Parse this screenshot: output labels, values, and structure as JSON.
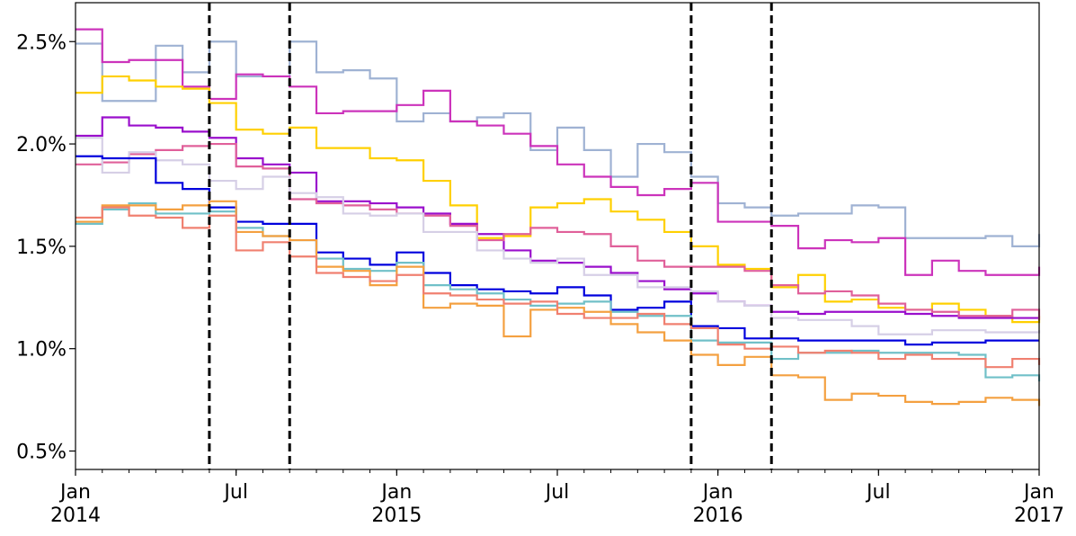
{
  "chart_data": {
    "type": "step",
    "x": [
      "2014-01",
      "2014-02",
      "2014-03",
      "2014-04",
      "2014-05",
      "2014-06",
      "2014-07",
      "2014-08",
      "2014-09",
      "2014-10",
      "2014-11",
      "2014-12",
      "2015-01",
      "2015-02",
      "2015-03",
      "2015-04",
      "2015-05",
      "2015-06",
      "2015-07",
      "2015-08",
      "2015-09",
      "2015-10",
      "2015-11",
      "2015-12",
      "2016-01",
      "2016-02",
      "2016-03",
      "2016-04",
      "2016-05",
      "2016-06",
      "2016-07",
      "2016-08",
      "2016-09",
      "2016-10",
      "2016-11",
      "2016-12",
      "2017-01"
    ],
    "series": [
      {
        "color": "#9fb2d3",
        "values": [
          2.49,
          2.21,
          2.21,
          2.48,
          2.35,
          2.5,
          2.33,
          2.33,
          2.5,
          2.35,
          2.36,
          2.32,
          2.11,
          2.15,
          2.11,
          2.13,
          2.15,
          1.97,
          2.08,
          1.97,
          1.84,
          2.0,
          1.96,
          1.84,
          1.71,
          1.69,
          1.65,
          1.66,
          1.66,
          1.7,
          1.69,
          1.54,
          1.54,
          1.54,
          1.55,
          1.5,
          1.56
        ]
      },
      {
        "color": "#cc33bb",
        "values": [
          2.56,
          2.4,
          2.41,
          2.41,
          2.28,
          2.22,
          2.34,
          2.33,
          2.28,
          2.15,
          2.16,
          2.16,
          2.19,
          2.26,
          2.11,
          2.09,
          2.05,
          1.99,
          1.9,
          1.84,
          1.79,
          1.75,
          1.78,
          1.81,
          1.62,
          1.62,
          1.6,
          1.49,
          1.53,
          1.52,
          1.54,
          1.36,
          1.43,
          1.38,
          1.36,
          1.36,
          1.4
        ]
      },
      {
        "color": "#ffd000",
        "values": [
          2.25,
          2.33,
          2.31,
          2.28,
          2.27,
          2.2,
          2.07,
          2.05,
          2.08,
          1.98,
          1.98,
          1.93,
          1.92,
          1.82,
          1.7,
          1.54,
          1.55,
          1.69,
          1.71,
          1.73,
          1.67,
          1.63,
          1.57,
          1.5,
          1.41,
          1.39,
          1.3,
          1.36,
          1.23,
          1.24,
          1.2,
          1.19,
          1.22,
          1.19,
          1.16,
          1.13,
          1.16
        ]
      },
      {
        "color": "#9a0fcc",
        "values": [
          2.04,
          2.13,
          2.09,
          2.08,
          2.06,
          2.03,
          1.93,
          1.9,
          1.86,
          1.72,
          1.72,
          1.71,
          1.69,
          1.66,
          1.61,
          1.56,
          1.48,
          1.43,
          1.42,
          1.4,
          1.37,
          1.33,
          1.29,
          1.27,
          1.23,
          1.21,
          1.18,
          1.17,
          1.18,
          1.18,
          1.18,
          1.17,
          1.16,
          1.15,
          1.15,
          1.15,
          1.15
        ]
      },
      {
        "color": "#e0609a",
        "values": [
          1.9,
          1.91,
          1.95,
          1.97,
          1.99,
          2.0,
          1.89,
          1.88,
          1.73,
          1.71,
          1.7,
          1.68,
          1.66,
          1.65,
          1.6,
          1.53,
          1.56,
          1.59,
          1.57,
          1.56,
          1.5,
          1.43,
          1.4,
          1.4,
          1.4,
          1.38,
          1.31,
          1.27,
          1.28,
          1.26,
          1.22,
          1.19,
          1.18,
          1.16,
          1.16,
          1.19,
          1.14
        ]
      },
      {
        "color": "#d6cfe6",
        "values": [
          2.03,
          1.86,
          1.96,
          1.92,
          1.9,
          1.82,
          1.78,
          1.84,
          1.76,
          1.74,
          1.66,
          1.65,
          1.66,
          1.57,
          1.57,
          1.48,
          1.44,
          1.42,
          1.44,
          1.36,
          1.36,
          1.3,
          1.3,
          1.28,
          1.23,
          1.21,
          1.15,
          1.14,
          1.14,
          1.11,
          1.07,
          1.07,
          1.09,
          1.09,
          1.08,
          1.08,
          1.09
        ]
      },
      {
        "color": "#0000dd",
        "values": [
          1.94,
          1.93,
          1.93,
          1.81,
          1.78,
          1.69,
          1.62,
          1.61,
          1.61,
          1.47,
          1.44,
          1.41,
          1.47,
          1.37,
          1.31,
          1.29,
          1.28,
          1.27,
          1.3,
          1.26,
          1.19,
          1.2,
          1.23,
          1.11,
          1.1,
          1.05,
          1.05,
          1.04,
          1.04,
          1.04,
          1.04,
          1.02,
          1.03,
          1.03,
          1.04,
          1.04,
          1.04
        ]
      },
      {
        "color": "#70c0c8",
        "values": [
          1.61,
          1.68,
          1.71,
          1.66,
          1.66,
          1.67,
          1.59,
          1.55,
          1.53,
          1.44,
          1.39,
          1.38,
          1.42,
          1.31,
          1.29,
          1.27,
          1.24,
          1.21,
          1.22,
          1.23,
          1.18,
          1.16,
          1.16,
          1.04,
          1.03,
          1.03,
          0.95,
          0.98,
          0.98,
          0.99,
          0.98,
          0.98,
          0.98,
          0.97,
          0.86,
          0.87,
          0.84
        ]
      },
      {
        "color": "#f4a040",
        "values": [
          1.62,
          1.7,
          1.7,
          1.68,
          1.7,
          1.72,
          1.57,
          1.55,
          1.53,
          1.4,
          1.38,
          1.31,
          1.4,
          1.2,
          1.22,
          1.21,
          1.06,
          1.19,
          1.2,
          1.18,
          1.12,
          1.08,
          1.04,
          0.97,
          0.92,
          0.96,
          0.87,
          0.86,
          0.75,
          0.78,
          0.77,
          0.74,
          0.73,
          0.74,
          0.76,
          0.75,
          0.72
        ]
      },
      {
        "color": "#f08070",
        "values": [
          1.64,
          1.69,
          1.65,
          1.64,
          1.59,
          1.65,
          1.48,
          1.52,
          1.45,
          1.37,
          1.35,
          1.33,
          1.36,
          1.27,
          1.26,
          1.24,
          1.22,
          1.23,
          1.17,
          1.15,
          1.15,
          1.17,
          1.12,
          1.1,
          1.02,
          1.0,
          1.01,
          0.98,
          0.99,
          0.98,
          0.95,
          0.97,
          0.95,
          0.95,
          0.91,
          0.95,
          0.92
        ]
      }
    ],
    "xlim": [
      "2014-01",
      "2017-01"
    ],
    "xticks": [
      {
        "value": "2014-01",
        "label": [
          "Jan",
          "2014"
        ]
      },
      {
        "value": "2014-07",
        "label": [
          "Jul"
        ]
      },
      {
        "value": "2015-01",
        "label": [
          "Jan",
          "2015"
        ]
      },
      {
        "value": "2015-07",
        "label": [
          "Jul"
        ]
      },
      {
        "value": "2016-01",
        "label": [
          "Jan",
          "2016"
        ]
      },
      {
        "value": "2016-07",
        "label": [
          "Jul"
        ]
      },
      {
        "value": "2017-01",
        "label": [
          "Jan",
          "2017"
        ]
      }
    ],
    "ylim": [
      0.41,
      2.69
    ],
    "yticks": [
      {
        "value": 0.5,
        "label": "0.5%"
      },
      {
        "value": 1.0,
        "label": "1.0%"
      },
      {
        "value": 1.5,
        "label": "1.5%"
      },
      {
        "value": 2.0,
        "label": "2.0%"
      },
      {
        "value": 2.5,
        "label": "2.5%"
      }
    ],
    "vlines": [
      "2014-06",
      "2014-09",
      "2015-12",
      "2016-03"
    ],
    "vline_color": "#000000"
  }
}
